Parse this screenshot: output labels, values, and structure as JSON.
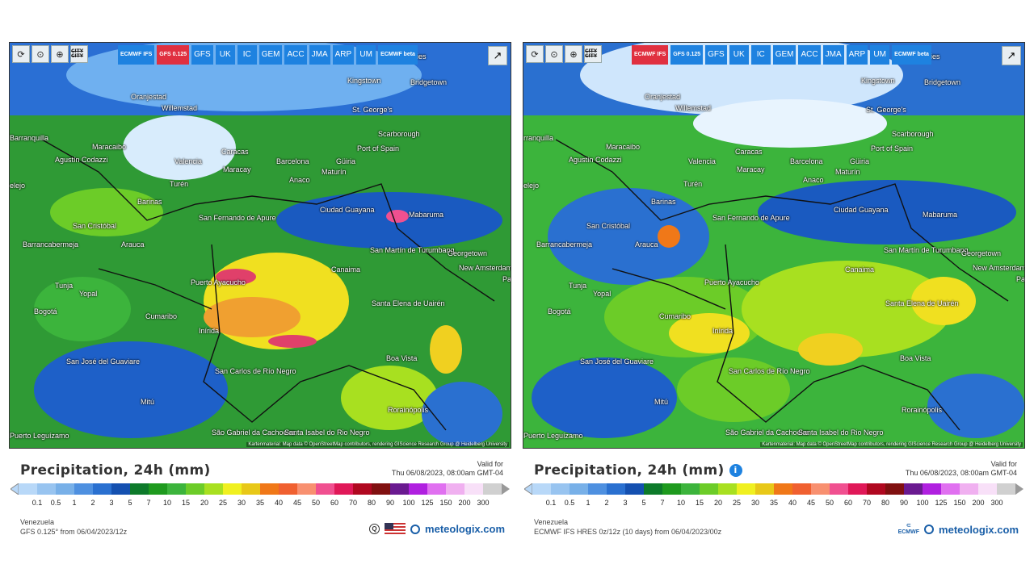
{
  "panels": [
    {
      "toolbar": {
        "reset_icon": "⟳",
        "pin_icon": "⊙",
        "zoom_icon": "⊕",
        "city_label": "CITY CITY"
      },
      "models": [
        {
          "label": "ECMWF IFS",
          "small": true,
          "active": false
        },
        {
          "label": "GFS 0.125",
          "small": true,
          "active": true
        },
        {
          "label": "GFS",
          "small": false,
          "active": false
        },
        {
          "label": "UK",
          "small": false,
          "active": false
        },
        {
          "label": "IC",
          "small": false,
          "active": false
        },
        {
          "label": "GEM",
          "small": false,
          "active": false
        },
        {
          "label": "ACC",
          "small": false,
          "active": false
        },
        {
          "label": "JMA",
          "small": false,
          "active": false
        },
        {
          "label": "ARP",
          "small": false,
          "active": false
        },
        {
          "label": "UM",
          "small": false,
          "active": false
        },
        {
          "label": "ECMWF beta",
          "small": true,
          "active": false
        }
      ],
      "map_labels": {
        "oranjestad": "Oranjestad",
        "willemstad": "Willemstad",
        "kingstown": "Kingstown",
        "bridgetown": "Bridgetown",
        "st_georges": "St. George's",
        "scarborough": "Scarborough",
        "port_of_spain": "Port of Spain",
        "caracas": "Caracas",
        "barcelona": "Barcelona",
        "guiria": "Güiria",
        "maracaibo": "Maracaibo",
        "valencia": "Valencia",
        "maracay": "Maracay",
        "maturin": "Maturín",
        "anaco": "Anaco",
        "barranquilla": "Barranquilla",
        "agustin_codazzi": "Agustín Codazzi",
        "turen": "Turén",
        "barinas": "Barinas",
        "san_fernando": "San Fernando de Apure",
        "ciudad_guayana": "Ciudad Guayana",
        "mabaruma": "Mabaruma",
        "san_cristobal": "San Cristóbal",
        "barrancabermeja": "Barrancabermeja",
        "arauca": "Arauca",
        "san_martin": "San Martín de Turumbang",
        "georgetown": "Georgetown",
        "new_amsterdam": "New Amsterdam",
        "canaima": "Canaima",
        "tunja": "Tunja",
        "yopal": "Yopal",
        "puerto_ayacucho": "Puerto Ayacucho",
        "bogota": "Bogotá",
        "cumaribo": "Cumaribo",
        "santa_elena": "Santa Elena de Uairén",
        "inirida": "Inírida",
        "boa_vista": "Boa Vista",
        "san_jose": "San José del Guaviare",
        "san_carlos": "San Carlos de Río Negro",
        "mitu": "Mitú",
        "rorainopolis": "Rorainópolis",
        "sao_gabriel": "São Gabriel da Cachoeira",
        "santa_isabel": "Santa Isabel do Rio Negro",
        "puerto_leguizamo": "Puerto Leguízamo",
        "stries": "stries",
        "elejo": "elejo",
        "pa": "Pa"
      },
      "attribution": "Kartenmaterial: Map data © OpenStreetMap contributors, rendering GIScience Research Group @ Heidelberg University",
      "title": "Precipitation, 24h (mm)",
      "show_info": false,
      "valid_label": "Valid for",
      "valid_time": "Thu 06/08/2023, 08:00am GMT-04",
      "region": "Venezuela",
      "source": "GFS 0.125° from 06/04/2023/12z",
      "brand": "meteologix.com",
      "logo": "us-flag"
    },
    {
      "toolbar": {
        "reset_icon": "⟳",
        "pin_icon": "⊙",
        "zoom_icon": "⊕",
        "city_label": "CITY CITY"
      },
      "models": [
        {
          "label": "ECMWF IFS",
          "small": true,
          "active": true
        },
        {
          "label": "GFS 0.125",
          "small": true,
          "active": false
        },
        {
          "label": "GFS",
          "small": false,
          "active": false
        },
        {
          "label": "UK",
          "small": false,
          "active": false
        },
        {
          "label": "IC",
          "small": false,
          "active": false
        },
        {
          "label": "GEM",
          "small": false,
          "active": false
        },
        {
          "label": "ACC",
          "small": false,
          "active": false
        },
        {
          "label": "JMA",
          "small": false,
          "active": false
        },
        {
          "label": "ARP",
          "small": false,
          "active": false
        },
        {
          "label": "UM",
          "small": false,
          "active": false
        },
        {
          "label": "ECMWF beta",
          "small": true,
          "active": false
        }
      ],
      "map_labels": {
        "oranjestad": "Oranjestad",
        "willemstad": "Willemstad",
        "kingstown": "Kingstown",
        "bridgetown": "Bridgetown",
        "st_georges": "St. George's",
        "scarborough": "Scarborough",
        "port_of_spain": "Port of Spain",
        "caracas": "Caracas",
        "barcelona": "Barcelona",
        "guiria": "Güiria",
        "maracaibo": "Maracaibo",
        "valencia": "Valencia",
        "maracay": "Maracay",
        "maturin": "Maturín",
        "anaco": "Anaco",
        "barranquilla": "rranquilla",
        "agustin_codazzi": "Agustín Codazzi",
        "turen": "Turén",
        "barinas": "Barinas",
        "san_fernando": "San Fernando de Apure",
        "ciudad_guayana": "Ciudad Guayana",
        "mabaruma": "Mabaruma",
        "san_cristobal": "San Cristóbal",
        "barrancabermeja": "Barrancabermeja",
        "arauca": "Arauca",
        "san_martin": "San Martín de Turumbang",
        "georgetown": "Georgetown",
        "new_amsterdam": "New Amsterdam",
        "canaima": "Canaima",
        "tunja": "Tunja",
        "yopal": "Yopal",
        "puerto_ayacucho": "Puerto Ayacucho",
        "bogota": "Bogotá",
        "cumaribo": "Cumaribo",
        "santa_elena": "Santa Elena de Uairén",
        "inirida": "Inírida",
        "boa_vista": "Boa Vista",
        "san_jose": "San José del Guaviare",
        "san_carlos": "San Carlos de Río Negro",
        "mitu": "Mitú",
        "rorainopolis": "Rorainópolis",
        "sao_gabriel": "São Gabriel da Cachoeira",
        "santa_isabel": "Santa Isabel do Rio Negro",
        "puerto_leguizamo": "Puerto Leguízamo",
        "stries": "stries",
        "elejo": "elejo",
        "pa": "Pa"
      },
      "attribution": "Kartenmaterial: Map data © OpenStreetMap contributors, rendering GIScience Research Group @ Heidelberg University",
      "title": "Precipitation, 24h (mm)",
      "show_info": true,
      "valid_label": "Valid for",
      "valid_time": "Thu 06/08/2023, 08:00am GMT-04",
      "region": "Venezuela",
      "source": "ECMWF IFS HRES 0z/12z (10 days) from 06/04/2023/00z",
      "brand": "meteologix.com",
      "logo": "ecmwf",
      "logo_text": "ECMWF"
    }
  ],
  "scale": {
    "ticks": [
      "0.1",
      "0.5",
      "1",
      "2",
      "3",
      "5",
      "7",
      "10",
      "15",
      "20",
      "25",
      "30",
      "35",
      "40",
      "45",
      "50",
      "60",
      "70",
      "80",
      "90",
      "100",
      "125",
      "150",
      "200",
      "300"
    ],
    "colors": [
      "#b8d8f8",
      "#98c4f0",
      "#78b0e8",
      "#4e90e0",
      "#2a70d0",
      "#1450b0",
      "#0d7a2a",
      "#1e9a1e",
      "#3cb43c",
      "#6ccc28",
      "#a8e020",
      "#f0f020",
      "#e8c818",
      "#f07818",
      "#f06030",
      "#f89070",
      "#f05090",
      "#e01858",
      "#b00820",
      "#801010",
      "#6a1a90",
      "#b020e0",
      "#e070f0",
      "#f0b0f0",
      "#f8e0f8",
      "#d0d0d0"
    ]
  }
}
